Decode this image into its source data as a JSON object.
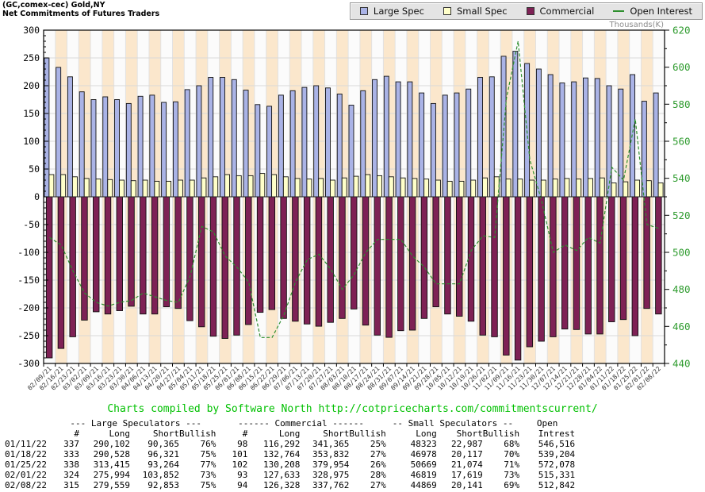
{
  "title": {
    "line1": "(GC,comex-cec) Gold,NY",
    "line2": "Net Commitments of Futures Traders"
  },
  "legend": {
    "items": [
      {
        "label": "Large Spec",
        "swatch": "square",
        "color": "#aab3e6"
      },
      {
        "label": "Small Spec",
        "swatch": "square",
        "color": "#ffffc9"
      },
      {
        "label": "Commercial",
        "swatch": "square",
        "color": "#7e2155"
      },
      {
        "label": "Open Interest",
        "swatch": "line",
        "color": "#2e8f2e"
      }
    ]
  },
  "axes": {
    "right_axis_title": "Thousands(K)",
    "left_ticks": [
      300,
      250,
      200,
      150,
      100,
      50,
      0,
      -50,
      -100,
      -150,
      -200,
      -250,
      -300
    ],
    "right_ticks": [
      620,
      600,
      580,
      560,
      540,
      520,
      500,
      480,
      460,
      440
    ],
    "left_color": "#000000",
    "right_color": "#2e9b2e"
  },
  "chart_data": {
    "type": "bar",
    "subtype": "bar+line",
    "title": "Net Commitments of Futures Traders",
    "left_axis": {
      "min": -300,
      "max": 300,
      "step": 50
    },
    "right_axis": {
      "min": 440,
      "max": 620,
      "step": 20,
      "label": "Thousands(K)"
    },
    "grid": true,
    "legend_position": "top-right",
    "categories": [
      "02/09/21",
      "02/16/21",
      "02/23/21",
      "03/02/21",
      "03/09/21",
      "03/16/21",
      "03/23/21",
      "03/30/21",
      "04/06/21",
      "04/13/21",
      "04/20/21",
      "04/27/21",
      "05/04/21",
      "05/11/21",
      "05/18/21",
      "05/25/21",
      "06/01/21",
      "06/08/21",
      "06/15/21",
      "06/22/21",
      "06/29/21",
      "07/06/21",
      "07/13/21",
      "07/20/21",
      "07/27/21",
      "08/03/21",
      "08/10/21",
      "08/17/21",
      "08/24/21",
      "08/31/21",
      "09/07/21",
      "09/14/21",
      "09/21/21",
      "09/28/21",
      "10/05/21",
      "10/12/21",
      "10/19/21",
      "10/26/21",
      "11/02/21",
      "11/09/21",
      "11/16/21",
      "11/23/21",
      "11/30/21",
      "12/07/21",
      "12/14/21",
      "12/21/21",
      "12/28/21",
      "01/04/22",
      "01/11/22",
      "01/18/22",
      "01/25/22",
      "02/01/22",
      "02/08/22"
    ],
    "series": [
      {
        "name": "Large Spec",
        "type": "bar",
        "axis": "left",
        "color": "#aab3e6",
        "values": [
          250,
          233,
          216,
          189,
          175,
          180,
          175,
          168,
          181,
          183,
          170,
          171,
          193,
          200,
          215,
          215,
          211,
          192,
          166,
          163,
          183,
          191,
          197,
          200,
          196,
          185,
          165,
          191,
          211,
          217,
          207,
          207,
          187,
          168,
          183,
          187,
          194,
          215,
          216,
          253,
          262,
          240,
          230,
          220,
          205,
          207,
          214,
          213,
          200,
          194,
          220,
          172,
          187
        ]
      },
      {
        "name": "Small Spec",
        "type": "bar",
        "axis": "left",
        "color": "#ffffc9",
        "values": [
          40,
          40,
          36,
          33,
          32,
          31,
          30,
          29,
          30,
          28,
          28,
          30,
          30,
          34,
          36,
          40,
          38,
          38,
          42,
          40,
          36,
          33,
          32,
          33,
          30,
          34,
          37,
          40,
          38,
          36,
          34,
          33,
          32,
          30,
          28,
          28,
          30,
          34,
          36,
          32,
          32,
          30,
          30,
          32,
          33,
          32,
          33,
          34,
          25,
          27,
          30,
          29,
          25
        ]
      },
      {
        "name": "Commercial",
        "type": "bar",
        "axis": "left",
        "color": "#7e2155",
        "values": [
          -290,
          -273,
          -252,
          -222,
          -207,
          -211,
          -205,
          -197,
          -211,
          -211,
          -198,
          -201,
          -223,
          -234,
          -251,
          -255,
          -249,
          -230,
          -208,
          -203,
          -219,
          -224,
          -229,
          -233,
          -226,
          -219,
          -202,
          -231,
          -249,
          -253,
          -241,
          -240,
          -219,
          -198,
          -211,
          -215,
          -224,
          -249,
          -252,
          -285,
          -294,
          -270,
          -260,
          -252,
          -238,
          -239,
          -247,
          -247,
          -225,
          -221,
          -250,
          -201,
          -211
        ]
      },
      {
        "name": "Open Interest",
        "type": "line",
        "axis": "right",
        "color": "#2e8f2e",
        "values": [
          508,
          504,
          490,
          478,
          473,
          471,
          473,
          474,
          478,
          476,
          474,
          473,
          487,
          514,
          511,
          498,
          492,
          484,
          454,
          454,
          466,
          484,
          496,
          499,
          491,
          480,
          488,
          500,
          507,
          507,
          507,
          498,
          492,
          483,
          483,
          483,
          501,
          509,
          508,
          583,
          614,
          550,
          528,
          500,
          504,
          501,
          508,
          505,
          546,
          539,
          572,
          515,
          513
        ]
      }
    ]
  },
  "footer": {
    "credit": "Charts compiled by Software North  http://cotpricecharts.com/commitmentscurrent/"
  },
  "table": {
    "group_headers": [
      "--- Large Speculators ---",
      "------ Commercial ------",
      "-- Small Speculators --",
      "Open"
    ],
    "col_headers": [
      "",
      "#",
      "Long",
      "Short",
      "Bullish",
      "#",
      "Long",
      "Short",
      "Bullish",
      "Long",
      "Short",
      "Bullish",
      "Intrest"
    ],
    "rows": [
      [
        "01/11/22",
        "337",
        "290,102",
        "90,365",
        "76%",
        "98",
        "116,292",
        "341,365",
        "25%",
        "48323",
        "22,987",
        "68%",
        "546,516"
      ],
      [
        "01/18/22",
        "333",
        "290,528",
        "96,321",
        "75%",
        "101",
        "132,764",
        "353,832",
        "27%",
        "46978",
        "20,117",
        "70%",
        "539,204"
      ],
      [
        "01/25/22",
        "338",
        "313,415",
        "93,264",
        "77%",
        "102",
        "130,208",
        "379,954",
        "26%",
        "50669",
        "21,074",
        "71%",
        "572,078"
      ],
      [
        "02/01/22",
        "324",
        "275,994",
        "103,852",
        "73%",
        "93",
        "127,633",
        "328,975",
        "28%",
        "46819",
        "17,619",
        "73%",
        "515,331"
      ],
      [
        "02/08/22",
        "315",
        "279,559",
        "92,853",
        "75%",
        "94",
        "126,328",
        "337,762",
        "27%",
        "44869",
        "20,141",
        "69%",
        "512,842"
      ]
    ]
  },
  "colors": {
    "band_light": "#fbfbfb",
    "band_peach": "#fbe7cc",
    "grid": "#d9d9d9",
    "plot_border": "#000000",
    "footer_green": "#00c000"
  }
}
